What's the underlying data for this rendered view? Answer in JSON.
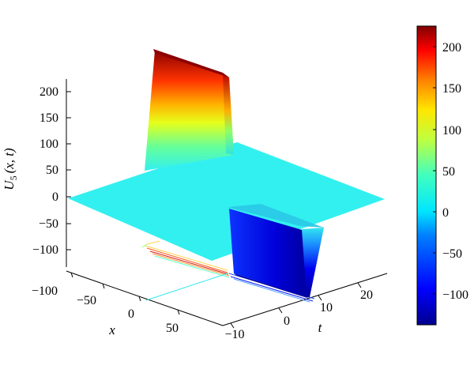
{
  "chart_data": {
    "type": "surface3d",
    "zlabel": "U5(x, t)",
    "zlabel_base": "U",
    "zlabel_sub": "5",
    "zlabel_args": "(x, t)",
    "xlabel": "x",
    "tlabel": "t",
    "x_ticks": [
      "−100",
      "−50",
      "0",
      "50"
    ],
    "t_ticks": [
      "−10",
      "0",
      "10",
      "20"
    ],
    "z_ticks": [
      "200",
      "150",
      "100",
      "50",
      "0",
      "−50",
      "−100"
    ],
    "x_range": [
      -100,
      100
    ],
    "t_range": [
      -10,
      30
    ],
    "z_range": [
      -130,
      220
    ],
    "colorbar": {
      "min": -140,
      "max": 225,
      "ticks": [
        "200",
        "150",
        "100",
        "50",
        "0",
        "−50",
        "−100"
      ],
      "colormap": "jet"
    },
    "surface": {
      "plateau_value": 0,
      "positive_peak_value": 222,
      "negative_trough_value": -133
    },
    "colors": {
      "plateau": "#33f0f0",
      "peak_top": "#8b0000",
      "trough_bottom": "#00008f"
    }
  }
}
